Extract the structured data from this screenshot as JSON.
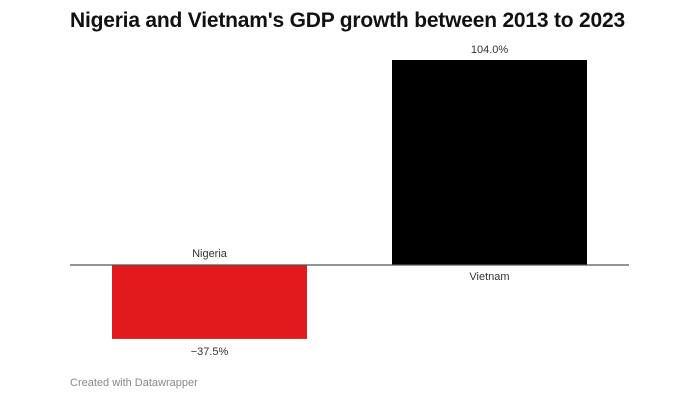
{
  "chart_data": {
    "type": "bar",
    "title": "Nigeria and Vietnam's GDP growth between 2013 to 2023",
    "categories": [
      "Nigeria",
      "Vietnam"
    ],
    "values": [
      -37.5,
      104.0
    ],
    "value_labels": [
      "−37.5%",
      "104.0%"
    ],
    "colors": [
      "#e31a1c",
      "#000000"
    ],
    "unit": "%",
    "grid": false,
    "legend": "none"
  },
  "footer": "Created with Datawrapper"
}
